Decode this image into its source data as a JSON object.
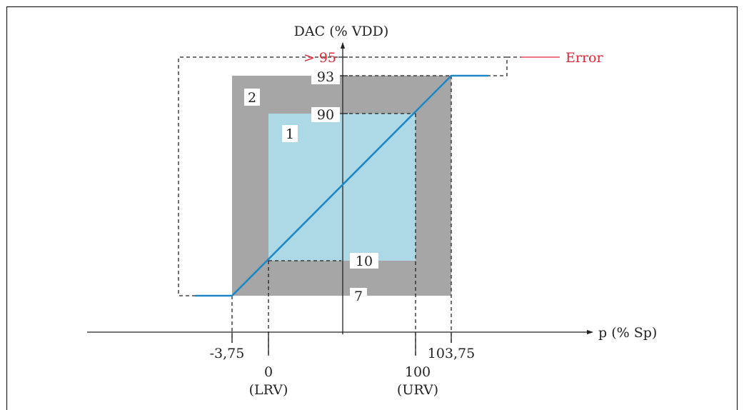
{
  "diagram": {
    "y_axis_label": "DAC (% VDD)",
    "x_axis_label": "p (% Sp)",
    "y_ticks": {
      "v95": "> 95",
      "v93": "93",
      "v90": "90",
      "v10": "10",
      "v7": "7"
    },
    "x_ticks": {
      "neg": "-3,75",
      "zero": "0",
      "zero_sub": "(LRV)",
      "hundred": "100",
      "hundred_sub": "(URV)",
      "over": "103,75"
    },
    "regions": {
      "inner": "1",
      "outer": "2"
    },
    "error_label": "Error",
    "colors": {
      "outer_region": "#a6a6a6",
      "inner_region": "#add8e6",
      "curve": "#1e88c6",
      "error": "#e32636"
    }
  }
}
